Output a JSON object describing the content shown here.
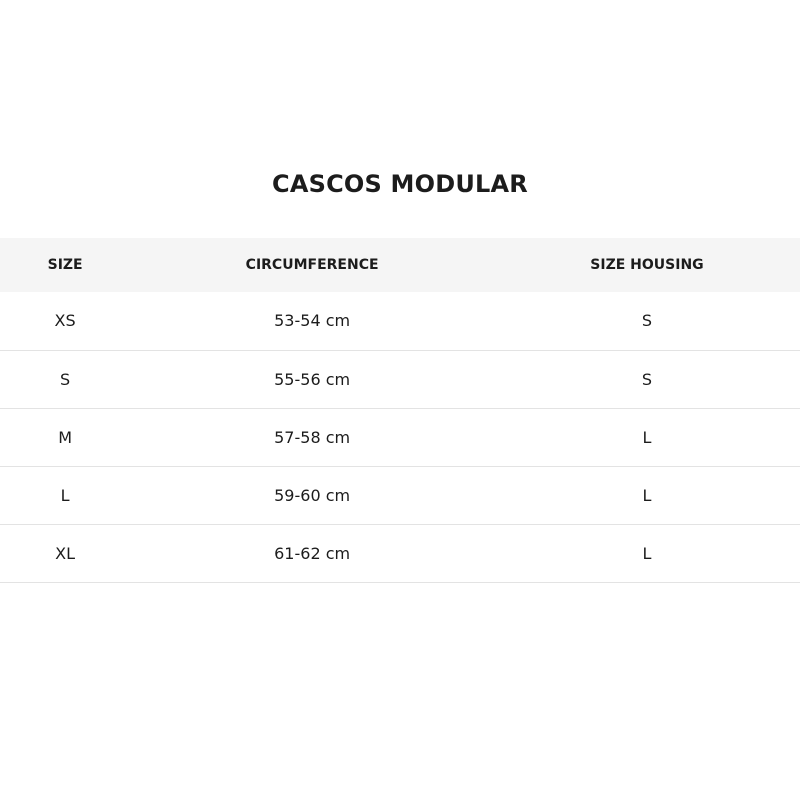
{
  "title": "CASCOS MODULAR",
  "table": {
    "headers": [
      "SIZE",
      "CIRCUMFERENCE",
      "SIZE HOUSING"
    ],
    "rows": [
      [
        "XS",
        "53-54 cm",
        "S"
      ],
      [
        "S",
        "55-56 cm",
        "S"
      ],
      [
        "M",
        "57-58 cm",
        "L"
      ],
      [
        "L",
        "59-60 cm",
        "L"
      ],
      [
        "XL",
        "61-62 cm",
        "L"
      ]
    ]
  }
}
